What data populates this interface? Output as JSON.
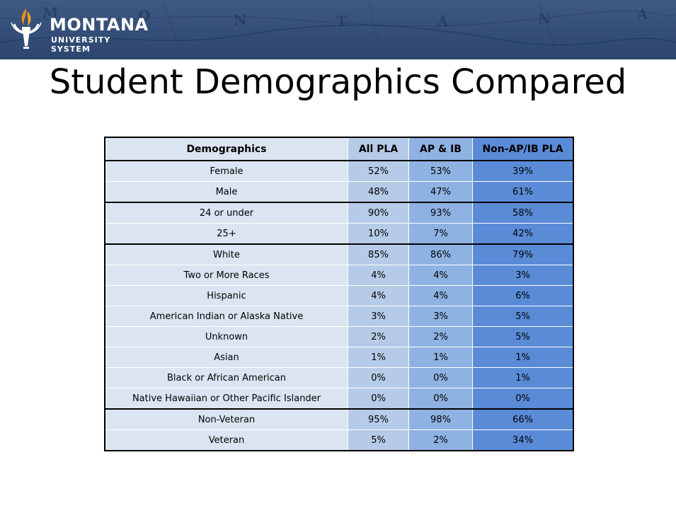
{
  "header": {
    "logo_name": "MONTANA",
    "logo_sub": "UNIVERSITY SYSTEM",
    "map_letters": [
      "M",
      "O",
      "N",
      "T",
      "A",
      "N",
      "A"
    ],
    "colors": {
      "banner": "#334e78",
      "flame": "#f08a1c"
    }
  },
  "slide": {
    "title": "Student Demographics Compared"
  },
  "table": {
    "headers": [
      "Demographics",
      "All PLA",
      "AP & IB",
      "Non-AP/IB PLA"
    ],
    "column_colors": [
      "#dbe5f1",
      "#b6cbe7",
      "#8eb2e1",
      "#5a8bd6"
    ],
    "rows": [
      [
        "Female",
        "52%",
        "53%",
        "39%"
      ],
      [
        "Male",
        "48%",
        "47%",
        "61%"
      ],
      [
        "24 or under",
        "90%",
        "93%",
        "58%"
      ],
      [
        "25+",
        "10%",
        "7%",
        "42%"
      ],
      [
        "White",
        "85%",
        "86%",
        "79%"
      ],
      [
        "Two or More Races",
        "4%",
        "4%",
        "3%"
      ],
      [
        "Hispanic",
        "4%",
        "4%",
        "6%"
      ],
      [
        "American Indian or Alaska Native",
        "3%",
        "3%",
        "5%"
      ],
      [
        "Unknown",
        "2%",
        "2%",
        "5%"
      ],
      [
        "Asian",
        "1%",
        "1%",
        "1%"
      ],
      [
        "Black or African American",
        "0%",
        "0%",
        "1%"
      ],
      [
        "Native Hawaiian or Other Pacific Islander",
        "0%",
        "0%",
        "0%"
      ],
      [
        "Non-Veteran",
        "95%",
        "98%",
        "66%"
      ],
      [
        "Veteran",
        "5%",
        "2%",
        "34%"
      ]
    ]
  }
}
